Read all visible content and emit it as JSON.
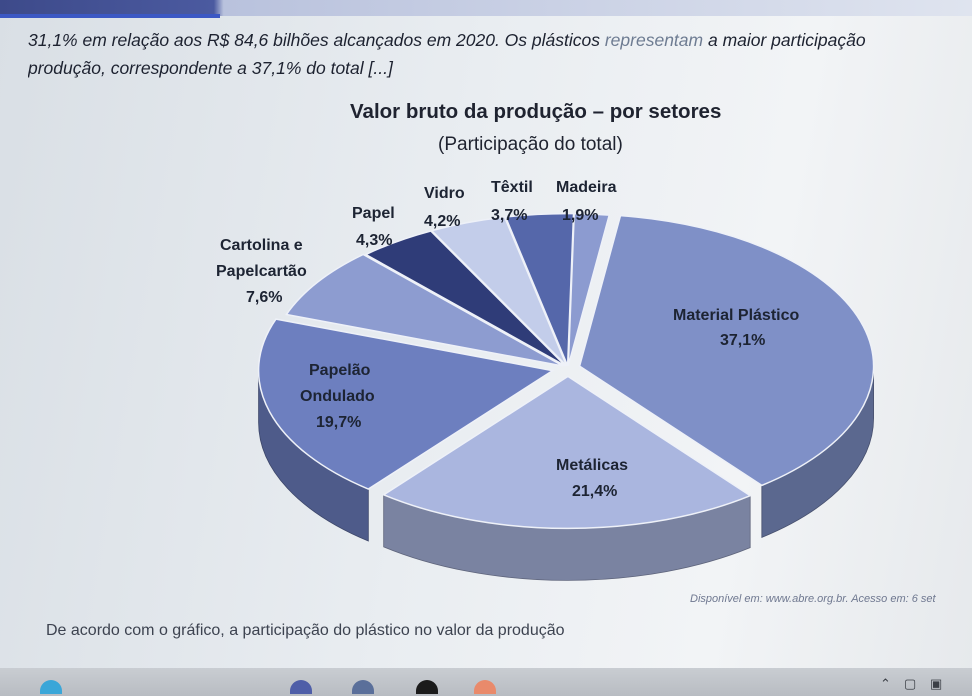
{
  "paragraph": {
    "line1_start": "31,1% em relação aos R$ 84,6 bilhões alcançados em 2020. Os plásticos ",
    "line1_faded": "representam",
    "line1_end": " a maior participação",
    "line2": "produção, correspondente a 37,1% do total [...]"
  },
  "chart_data": {
    "type": "pie",
    "title": "Valor bruto da produção – por setores",
    "subtitle": "(Participação do total)",
    "slices": [
      {
        "label": "Material Plástico",
        "value": 37.1,
        "value_label": "37,1%",
        "color": "#7f90c7"
      },
      {
        "label": "Metálicas",
        "value": 21.4,
        "value_label": "21,4%",
        "color": "#aab6df"
      },
      {
        "label": "Papelão Ondulado",
        "value": 19.7,
        "value_label": "19,7%",
        "color": "#6d7fbf"
      },
      {
        "label": "Cartolina e Papelcartão",
        "value": 7.6,
        "value_label": "7,6%",
        "color": "#8d9cd0"
      },
      {
        "label": "Papel",
        "value": 4.3,
        "value_label": "4,3%",
        "color": "#2f3c78"
      },
      {
        "label": "Vidro",
        "value": 4.2,
        "value_label": "4,2%",
        "color": "#c3cdea"
      },
      {
        "label": "Têxtil",
        "value": 3.7,
        "value_label": "3,7%",
        "color": "#5567aa"
      },
      {
        "label": "Madeira",
        "value": 1.9,
        "value_label": "1,9%",
        "color": "#8c9bd0"
      }
    ],
    "legend": "none (labels beside slices)"
  },
  "labels": {
    "plastico_1": "Material Plástico",
    "plastico_v": "37,1%",
    "metalicas_1": "Metálicas",
    "metalicas_v": "21,4%",
    "papelao_1": "Papelão",
    "papelao_2": "Ondulado",
    "papelao_v": "19,7%",
    "cartolina_1": "Cartolina e",
    "cartolina_2": "Papelcartão",
    "cartolina_v": "7,6%",
    "papel_1": "Papel",
    "papel_v": "4,3%",
    "vidro_1": "Vidro",
    "vidro_v": "4,2%",
    "textil_1": "Têxtil",
    "textil_v": "3,7%",
    "madeira_1": "Madeira",
    "madeira_v": "1,9%"
  },
  "source": "Disponível em: www.abre.org.br. Acesso em: 6 set",
  "question": "De acordo com o gráfico, a participação do plástico no valor da produção",
  "colors": {
    "accent": "#3c58c4"
  }
}
